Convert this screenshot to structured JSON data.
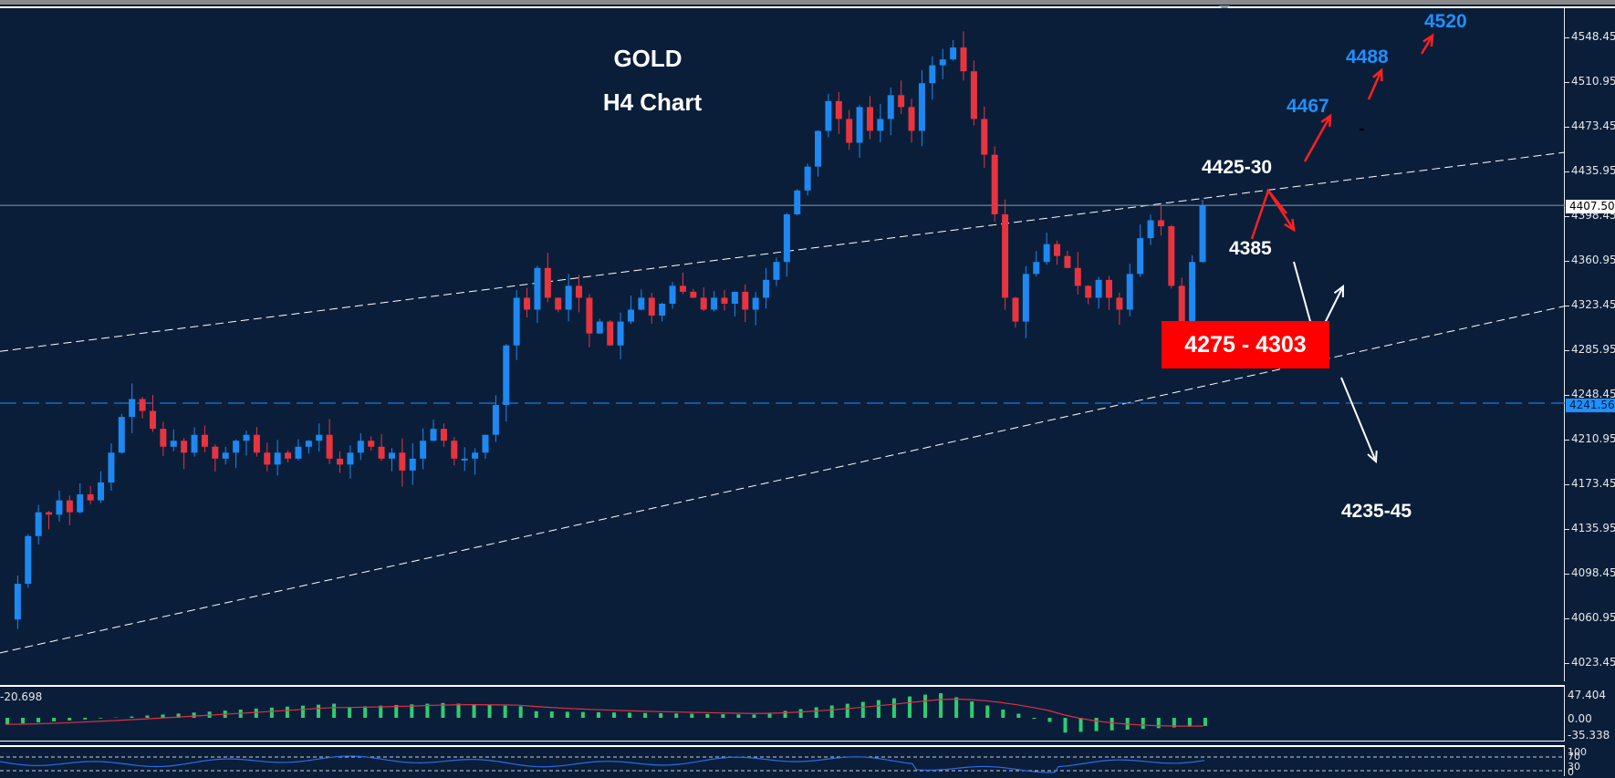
{
  "chart_data": {
    "type": "candlestick",
    "title": "GOLD",
    "subtitle": "H4 Chart",
    "timeframe": "H4",
    "symbol": "GOLD",
    "y_axis": {
      "ticks": [
        4548.45,
        4510.95,
        4473.45,
        4435.95,
        4398.45,
        4360.95,
        4323.45,
        4285.95,
        4248.45,
        4210.95,
        4173.45,
        4135.95,
        4098.45,
        4060.95,
        4023.45
      ],
      "range": [
        4005,
        4570
      ]
    },
    "current_price": 4407.5,
    "horizontal_level": 4241.56,
    "trend_channel": {
      "upper_line": "dashed white, rising from ~4285 (left) to ~4450 (right)",
      "lower_line": "dashed white, rising from ~4032 (left) to ~4323 (right)"
    },
    "price_series_approx": {
      "description": "H4 candles, uptrend from ~4060 to peak ~4550, sharp drop to ~4310, recovery to ~4407",
      "closes_sampled": [
        4060,
        4120,
        4150,
        4175,
        4200,
        4235,
        4220,
        4210,
        4200,
        4195,
        4215,
        4205,
        4195,
        4190,
        4205,
        4220,
        4300,
        4340,
        4330,
        4320,
        4335,
        4325,
        4340,
        4330,
        4345,
        4400,
        4430,
        4500,
        4480,
        4470,
        4520,
        4540,
        4480,
        4400,
        4330,
        4360,
        4350,
        4320,
        4345,
        4390,
        4310,
        4407.5
      ]
    },
    "annotations": [
      {
        "text": "4520",
        "color": "#1e90ff",
        "type": "target"
      },
      {
        "text": "4488",
        "color": "#1e90ff",
        "type": "target"
      },
      {
        "text": "4467",
        "color": "#1e90ff",
        "type": "target"
      },
      {
        "text": "4425-30",
        "color": "#ffffff",
        "type": "resistance"
      },
      {
        "text": "4385",
        "color": "#ffffff",
        "type": "pivot"
      },
      {
        "text": "4275 - 4303",
        "color": "#ffffff",
        "background": "#ff0000",
        "type": "support-zone"
      },
      {
        "text": "4235-45",
        "color": "#ffffff",
        "type": "target-down"
      }
    ],
    "indicators": [
      {
        "name": "MACD",
        "current_value": -20.698,
        "axis": [
          47.404,
          0.0,
          -35.338
        ]
      },
      {
        "name": "Stochastic",
        "levels": [
          100,
          70,
          30,
          0
        ]
      }
    ],
    "colors": {
      "background": "#0a1e3a",
      "bull": "#1e88f0",
      "bear": "#e8343f",
      "histogram": "#2ecc71",
      "signal": "#e03040",
      "stoch": "#2e6be6"
    }
  },
  "chart": {
    "title": "GOLD",
    "subtitle": "H4 Chart",
    "axis_ticks": [
      "4548.45",
      "4510.95",
      "4473.45",
      "4435.95",
      "4398.45",
      "4360.95",
      "4323.45",
      "4285.95",
      "4248.45",
      "4210.95",
      "4173.45",
      "4135.95",
      "4098.45",
      "4060.95",
      "4023.45"
    ],
    "current_price_tag": "4407.50",
    "level_tag": "4241.56",
    "labels": {
      "t4520": "4520",
      "t4488": "4488",
      "t4467": "4467",
      "r442530": "4425-30",
      "p4385": "4385",
      "zone": "4275 - 4303",
      "t423545": "4235-45"
    }
  },
  "macd": {
    "value": "-20.698",
    "axis": [
      "47.404",
      "0.00",
      "-35.338"
    ]
  },
  "stoch": {
    "axis": [
      "100",
      "70",
      "30",
      "0"
    ]
  }
}
